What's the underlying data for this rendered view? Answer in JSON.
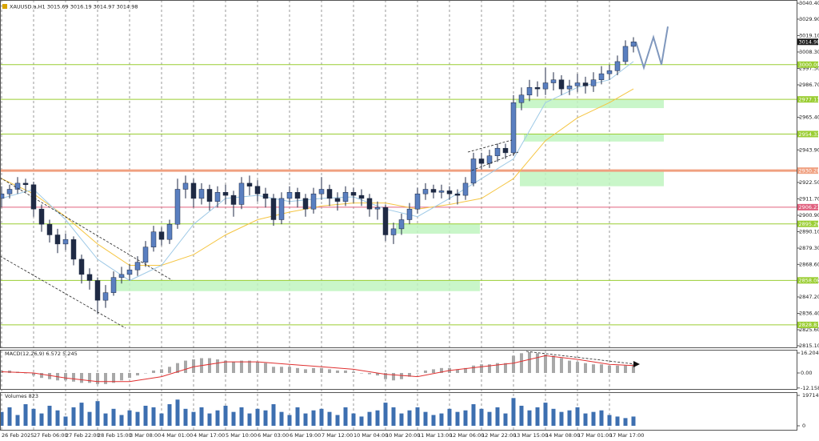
{
  "chart_data": {
    "type": "candlestick",
    "title": "XAUUSD.a,H1 3015.69 3016.19 3014.97 3014.98",
    "open": [
      2912,
      2915,
      2918,
      2922,
      2921,
      2905,
      2895,
      2888,
      2882,
      2885,
      2872,
      2862,
      2858,
      2845,
      2850,
      2860,
      2862,
      2865,
      2870,
      2880,
      2890,
      2885,
      2895,
      2918,
      2922,
      2912,
      2918,
      2910,
      2916,
      2914,
      2908,
      2922,
      2920,
      2915,
      2912,
      2898,
      2912,
      2916,
      2912,
      2905,
      2915,
      2918,
      2912,
      2910,
      2916,
      2914,
      2912,
      2905,
      2906,
      2888,
      2892,
      2898,
      2905,
      2915,
      2918,
      2916,
      2917,
      2915,
      2914,
      2922,
      2938,
      2935,
      2940,
      2945,
      2942,
      2975,
      2980,
      2985,
      2984,
      2988,
      2990,
      2984,
      2986,
      2988,
      2986,
      2990,
      2994,
      2996,
      3002,
      3012
    ],
    "high": [
      2920,
      2921,
      2926,
      2925,
      2923,
      2908,
      2898,
      2892,
      2889,
      2887,
      2875,
      2866,
      2860,
      2855,
      2864,
      2867,
      2869,
      2874,
      2884,
      2894,
      2893,
      2898,
      2925,
      2927,
      2925,
      2922,
      2921,
      2920,
      2921,
      2917,
      2926,
      2927,
      2924,
      2919,
      2915,
      2916,
      2920,
      2919,
      2915,
      2919,
      2926,
      2921,
      2916,
      2920,
      2919,
      2918,
      2915,
      2910,
      2908,
      2896,
      2902,
      2909,
      2919,
      2922,
      2921,
      2921,
      2920,
      2918,
      2926,
      2942,
      2942,
      2944,
      2948,
      2948,
      2980,
      2985,
      2990,
      2989,
      2998,
      2995,
      2993,
      2990,
      2994,
      2992,
      2995,
      2999,
      3000,
      3006,
      3016,
      3018
    ],
    "low": [
      2906,
      2912,
      2915,
      2916,
      2900,
      2890,
      2883,
      2876,
      2878,
      2868,
      2856,
      2852,
      2836,
      2840,
      2848,
      2856,
      2858,
      2861,
      2867,
      2877,
      2881,
      2882,
      2892,
      2912,
      2906,
      2908,
      2904,
      2906,
      2908,
      2900,
      2905,
      2914,
      2910,
      2906,
      2894,
      2895,
      2908,
      2906,
      2900,
      2902,
      2911,
      2907,
      2904,
      2907,
      2909,
      2907,
      2900,
      2898,
      2884,
      2882,
      2888,
      2895,
      2902,
      2911,
      2912,
      2912,
      2911,
      2908,
      2911,
      2920,
      2931,
      2932,
      2936,
      2938,
      2940,
      2970,
      2976,
      2979,
      2980,
      2983,
      2980,
      2980,
      2982,
      2981,
      2982,
      2987,
      2990,
      2993,
      3000,
      3008
    ],
    "close": [
      2915,
      2918,
      2922,
      2921,
      2905,
      2895,
      2888,
      2882,
      2885,
      2872,
      2862,
      2858,
      2845,
      2850,
      2860,
      2862,
      2865,
      2870,
      2880,
      2890,
      2885,
      2895,
      2918,
      2922,
      2912,
      2918,
      2910,
      2916,
      2914,
      2908,
      2922,
      2920,
      2915,
      2912,
      2898,
      2912,
      2916,
      2912,
      2905,
      2915,
      2918,
      2912,
      2910,
      2916,
      2914,
      2912,
      2905,
      2906,
      2888,
      2892,
      2898,
      2905,
      2915,
      2918,
      2916,
      2917,
      2915,
      2914,
      2922,
      2938,
      2935,
      2940,
      2945,
      2942,
      2975,
      2980,
      2985,
      2984,
      2988,
      2990,
      2984,
      2986,
      2988,
      2986,
      2990,
      2994,
      2996,
      3002,
      3012,
      3015
    ],
    "up_color": "#5a7fc0",
    "down_color": "#1f2a44",
    "xlim": [
      -0.2,
      99.5
    ],
    "xticks": [
      {
        "value": 0,
        "label": "26 Feb 2025"
      },
      {
        "value": 4,
        "label": "27 Feb 06:00"
      },
      {
        "value": 8,
        "label": "27 Feb 22:00"
      },
      {
        "value": 12,
        "label": "28 Feb 15:00"
      },
      {
        "value": 16,
        "label": "3 Mar 08:00"
      },
      {
        "value": 20,
        "label": "4 Mar 01:00"
      },
      {
        "value": 24,
        "label": "4 Mar 17:00"
      },
      {
        "value": 28,
        "label": "5 Mar 10:00"
      },
      {
        "value": 32,
        "label": "6 Mar 03:00"
      },
      {
        "value": 36,
        "label": "6 Mar 19:00"
      },
      {
        "value": 40,
        "label": "7 Mar 12:00"
      },
      {
        "value": 44,
        "label": "10 Mar 04:00"
      },
      {
        "value": 48,
        "label": "10 Mar 20:00"
      },
      {
        "value": 52,
        "label": "11 Mar 13:00"
      },
      {
        "value": 56,
        "label": "12 Mar 06:00"
      },
      {
        "value": 60,
        "label": "12 Mar 22:00"
      },
      {
        "value": 64,
        "label": "13 Mar 15:00"
      },
      {
        "value": 68,
        "label": "14 Mar 08:00"
      },
      {
        "value": 72,
        "label": "17 Mar 01:00"
      },
      {
        "value": 76,
        "label": "17 Mar 17:00"
      }
    ],
    "ylim": [
      2813.5,
      3042.5
    ],
    "yticks": [
      {
        "value": 3040.4,
        "label": "3040.40"
      },
      {
        "value": 3029.9,
        "label": "3029.90"
      },
      {
        "value": 3019.1,
        "label": "3019.10"
      },
      {
        "value": 3008.3,
        "label": "3008.30"
      },
      {
        "value": 2997.5,
        "label": "2997.50"
      },
      {
        "value": 2986.7,
        "label": "2986.70"
      },
      {
        "value": 2965.4,
        "label": "2965.40"
      },
      {
        "value": 2943.9,
        "label": "2943.90"
      },
      {
        "value": 2922.5,
        "label": "2922.50"
      },
      {
        "value": 2911.7,
        "label": "2911.70"
      },
      {
        "value": 2900.9,
        "label": "2900.90"
      },
      {
        "value": 2890.1,
        "label": "2890.10"
      },
      {
        "value": 2879.3,
        "label": "2879.30"
      },
      {
        "value": 2868.6,
        "label": "2868.60"
      },
      {
        "value": 2857.8,
        "label": "2857.80"
      },
      {
        "value": 2847.2,
        "label": "2847.20"
      },
      {
        "value": 2836.4,
        "label": "2836.40"
      },
      {
        "value": 2825.6,
        "label": "2825.60"
      },
      {
        "value": 2815.1,
        "label": "2815.10"
      }
    ],
    "levels": [
      {
        "value": 3000,
        "label": "3000.00",
        "color": "#9acd32"
      },
      {
        "value": 2977.13,
        "label": "2977.13",
        "color": "#9acd32"
      },
      {
        "value": 2954.33,
        "label": "2954.33",
        "color": "#9acd32"
      },
      {
        "value": 2930.28,
        "label": "2930.28",
        "color": "#f0a080"
      },
      {
        "value": 2906.23,
        "label": "2906.23",
        "color": "#e0607e"
      },
      {
        "value": 2895.26,
        "label": "2895.26",
        "color": "#9acd32"
      },
      {
        "value": 2858.08,
        "label": "2858.08",
        "color": "#9acd32"
      },
      {
        "value": 2828.81,
        "label": "2828.81",
        "color": "#9acd32"
      }
    ],
    "current_price": 3014.98,
    "zone_color": "#bff5bf",
    "zones": [
      {
        "x": [
          64.3,
          82.8
        ],
        "y": [
          2971.4,
          2976.7
        ]
      },
      {
        "x": [
          65.3,
          82.8
        ],
        "y": [
          2949.4,
          2954.1
        ]
      },
      {
        "x": [
          64.8,
          82.8
        ],
        "y": [
          2920,
          2931
        ]
      },
      {
        "x": [
          49.3,
          59.8
        ],
        "y": [
          2888.8,
          2895.1
        ]
      },
      {
        "x": [
          14.3,
          59.8
        ],
        "y": [
          2851,
          2858.3
        ]
      }
    ],
    "overlays": [
      {
        "color": "#f5c542",
        "x": [
          0,
          4,
          8,
          12,
          16,
          20,
          24,
          28,
          32,
          36,
          40,
          44,
          48,
          52,
          56,
          60,
          64,
          68,
          72,
          76,
          79
        ],
        "values": [
          2925,
          2915,
          2900,
          2882,
          2868,
          2868,
          2875,
          2888,
          2898,
          2903,
          2907,
          2909,
          2909,
          2905,
          2908,
          2912,
          2925,
          2950,
          2965,
          2975,
          2984
        ]
      },
      {
        "color": "#9ec9e6",
        "x": [
          0,
          4,
          8,
          12,
          16,
          20,
          24,
          28,
          32,
          36,
          40,
          44,
          48,
          52,
          56,
          60,
          64,
          68,
          72,
          76,
          79
        ],
        "values": [
          2912,
          2918,
          2898,
          2872,
          2858,
          2868,
          2895,
          2912,
          2914,
          2910,
          2912,
          2913,
          2905,
          2900,
          2912,
          2925,
          2938,
          2975,
          2985,
          2990,
          3002
        ]
      },
      {
        "color": "#7f97bd",
        "x": [
          79.3,
          80.3,
          81.5,
          82.5,
          83.3
        ],
        "values": [
          3015,
          2998,
          3018,
          3000,
          3025
        ]
      }
    ],
    "macd": {
      "title": "MACD(12,26,9) 6.572 5.245",
      "ylim": [
        -13.6,
        18.8
      ],
      "yticks": [
        16.204,
        {
          "value": 0,
          "label": "0.00"
        },
        -12.158
      ],
      "hist_color": "#a8a8a8",
      "histogram": [
        2,
        2,
        1,
        0,
        -2,
        -4,
        -5,
        -6,
        -6,
        -7,
        -8,
        -8,
        -9,
        -9,
        -8,
        -6,
        -4,
        -2,
        0,
        2,
        3,
        5,
        8,
        10,
        11,
        12,
        12,
        11,
        10,
        9,
        10,
        10,
        9,
        8,
        5,
        5,
        5,
        4,
        3,
        4,
        4,
        3,
        2,
        2,
        1,
        0,
        -1,
        -2,
        -5,
        -6,
        -5,
        -3,
        0,
        2,
        3,
        4,
        4,
        3,
        4,
        6,
        7,
        7,
        8,
        8,
        14,
        16,
        17,
        16,
        15,
        14,
        12,
        10,
        9,
        8,
        7,
        7,
        6,
        6,
        6,
        7
      ],
      "signal": {
        "color": "#e03030",
        "x": [
          0,
          4,
          8,
          12,
          16,
          20,
          24,
          28,
          32,
          36,
          40,
          44,
          48,
          52,
          56,
          60,
          64,
          68,
          72,
          76,
          79
        ],
        "values": [
          1,
          0,
          -4,
          -7,
          -7,
          -3,
          5,
          9,
          9,
          7,
          5,
          3,
          -1,
          -3,
          2,
          5,
          8,
          14,
          11,
          7,
          6
        ]
      }
    },
    "volume": {
      "title": "Volumes 823",
      "ylim": [
        -2600,
        21800
      ],
      "yticks": [
        19714,
        0
      ],
      "color": "#3d6fb0",
      "values": [
        9000,
        12000,
        7000,
        14000,
        11000,
        8000,
        13000,
        10000,
        6000,
        12000,
        15000,
        9000,
        16000,
        8000,
        11000,
        7000,
        10000,
        9000,
        13000,
        12000,
        8000,
        14000,
        17000,
        11000,
        9000,
        12000,
        8000,
        10000,
        13000,
        9000,
        12000,
        8000,
        11000,
        10000,
        14000,
        9000,
        7000,
        12000,
        8000,
        10000,
        11000,
        9000,
        7000,
        12000,
        8000,
        6000,
        9000,
        10000,
        15000,
        12000,
        8000,
        10000,
        12000,
        9000,
        7000,
        8000,
        11000,
        9000,
        10000,
        14000,
        11000,
        9000,
        12000,
        8000,
        18000,
        13000,
        10000,
        12000,
        15000,
        11000,
        9000,
        10000,
        12000,
        8000,
        9000,
        10000,
        7000,
        6000,
        5000,
        6000
      ]
    }
  }
}
